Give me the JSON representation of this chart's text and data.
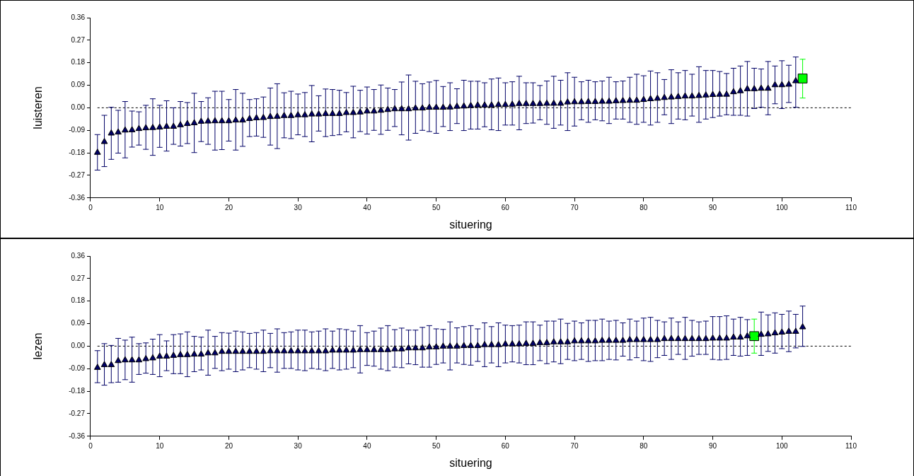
{
  "chart_data": [
    {
      "type": "scatter",
      "xlabel": "situering",
      "ylabel": "luisteren",
      "xlim": [
        0,
        110
      ],
      "xticks": [
        0,
        10,
        20,
        30,
        40,
        50,
        60,
        70,
        80,
        90,
        100,
        110
      ],
      "ylim": [
        -0.36,
        0.36
      ],
      "yticks": [
        {
          "value": -0.36,
          "label": "-0.36"
        },
        {
          "value": -0.27,
          "label": "-0.27"
        },
        {
          "value": -0.18,
          "label": "-0.18"
        },
        {
          "value": -0.09,
          "label": "-0.09"
        },
        {
          "value": 0,
          "label": "0.00"
        },
        {
          "value": 0.09,
          "label": "0.09"
        },
        {
          "value": 0.18,
          "label": "0.18"
        },
        {
          "value": 0.27,
          "label": "0.27"
        },
        {
          "value": 0.36,
          "label": "0.36"
        }
      ],
      "grid": false,
      "ref_lines": [
        {
          "axis": "y",
          "value": 0,
          "color": "#000000",
          "line_style": "dashed"
        }
      ],
      "series": [
        {
          "color": "#000066",
          "marker": "triangle",
          "x": [
            1,
            2,
            3,
            4,
            5,
            6,
            7,
            8,
            9,
            10,
            11,
            12,
            13,
            14,
            15,
            16,
            17,
            18,
            19,
            20,
            21,
            22,
            23,
            24,
            25,
            26,
            27,
            28,
            29,
            30,
            31,
            32,
            33,
            34,
            35,
            36,
            37,
            38,
            39,
            40,
            41,
            42,
            43,
            44,
            45,
            46,
            47,
            48,
            49,
            50,
            51,
            52,
            53,
            54,
            55,
            56,
            57,
            58,
            59,
            60,
            61,
            62,
            63,
            64,
            65,
            66,
            67,
            68,
            69,
            70,
            71,
            72,
            73,
            74,
            75,
            76,
            77,
            78,
            79,
            80,
            81,
            82,
            83,
            84,
            85,
            86,
            87,
            88,
            89,
            90,
            91,
            92,
            93,
            94,
            95,
            96,
            97,
            98,
            99,
            100,
            101,
            102
          ],
          "values": [
            -0.179,
            -0.136,
            -0.102,
            -0.098,
            -0.09,
            -0.089,
            -0.084,
            -0.081,
            -0.08,
            -0.078,
            -0.075,
            -0.075,
            -0.069,
            -0.064,
            -0.061,
            -0.055,
            -0.054,
            -0.053,
            -0.053,
            -0.053,
            -0.05,
            -0.05,
            -0.044,
            -0.041,
            -0.04,
            -0.036,
            -0.035,
            -0.032,
            -0.032,
            -0.029,
            -0.029,
            -0.026,
            -0.026,
            -0.024,
            -0.024,
            -0.024,
            -0.02,
            -0.02,
            -0.018,
            -0.014,
            -0.014,
            -0.011,
            -0.008,
            -0.005,
            -0.005,
            -0.005,
            -0.002,
            -0.002,
            0.001,
            0.001,
            0.001,
            0.002,
            0.005,
            0.006,
            0.008,
            0.01,
            0.01,
            0.01,
            0.012,
            0.012,
            0.013,
            0.016,
            0.016,
            0.016,
            0.016,
            0.017,
            0.017,
            0.017,
            0.022,
            0.023,
            0.023,
            0.024,
            0.024,
            0.025,
            0.025,
            0.027,
            0.028,
            0.029,
            0.029,
            0.032,
            0.035,
            0.037,
            0.04,
            0.042,
            0.044,
            0.046,
            0.046,
            0.048,
            0.05,
            0.052,
            0.053,
            0.053,
            0.063,
            0.067,
            0.075,
            0.075,
            0.077,
            0.077,
            0.091,
            0.091,
            0.093,
            0.107
          ],
          "errors": [
            [
              -0.249,
              -0.107
            ],
            [
              -0.235,
              -0.03
            ],
            [
              -0.206,
              0.002
            ],
            [
              -0.181,
              -0.01
            ],
            [
              -0.2,
              0.025
            ],
            [
              -0.157,
              -0.013
            ],
            [
              -0.149,
              -0.016
            ],
            [
              -0.166,
              0.01
            ],
            [
              -0.19,
              0.036
            ],
            [
              -0.158,
              0.01
            ],
            [
              -0.173,
              0.028
            ],
            [
              -0.146,
              0
            ],
            [
              -0.153,
              0.025
            ],
            [
              -0.143,
              0.021
            ],
            [
              -0.179,
              0.058
            ],
            [
              -0.135,
              0.025
            ],
            [
              -0.146,
              0.04
            ],
            [
              -0.169,
              0.066
            ],
            [
              -0.167,
              0.066
            ],
            [
              -0.133,
              0.033
            ],
            [
              -0.169,
              0.073
            ],
            [
              -0.154,
              0.058
            ],
            [
              -0.115,
              0.033
            ],
            [
              -0.113,
              0.036
            ],
            [
              -0.118,
              0.043
            ],
            [
              -0.149,
              0.079
            ],
            [
              -0.163,
              0.096
            ],
            [
              -0.12,
              0.06
            ],
            [
              -0.123,
              0.066
            ],
            [
              -0.108,
              0.055
            ],
            [
              -0.115,
              0.061
            ],
            [
              -0.136,
              0.089
            ],
            [
              -0.093,
              0.048
            ],
            [
              -0.115,
              0.075
            ],
            [
              -0.111,
              0.073
            ],
            [
              -0.108,
              0.07
            ],
            [
              -0.096,
              0.061
            ],
            [
              -0.12,
              0.086
            ],
            [
              -0.095,
              0.07
            ],
            [
              -0.105,
              0.083
            ],
            [
              -0.09,
              0.073
            ],
            [
              -0.106,
              0.091
            ],
            [
              -0.09,
              0.079
            ],
            [
              -0.075,
              0.073
            ],
            [
              -0.108,
              0.103
            ],
            [
              -0.129,
              0.131
            ],
            [
              -0.102,
              0.106
            ],
            [
              -0.09,
              0.096
            ],
            [
              -0.095,
              0.103
            ],
            [
              -0.102,
              0.109
            ],
            [
              -0.075,
              0.085
            ],
            [
              -0.091,
              0.1
            ],
            [
              -0.063,
              0.076
            ],
            [
              -0.091,
              0.11
            ],
            [
              -0.085,
              0.106
            ],
            [
              -0.085,
              0.106
            ],
            [
              -0.076,
              0.1
            ],
            [
              -0.088,
              0.115
            ],
            [
              -0.091,
              0.119
            ],
            [
              -0.069,
              0.1
            ],
            [
              -0.069,
              0.104
            ],
            [
              -0.088,
              0.126
            ],
            [
              -0.063,
              0.1
            ],
            [
              -0.061,
              0.1
            ],
            [
              -0.048,
              0.089
            ],
            [
              -0.066,
              0.107
            ],
            [
              -0.082,
              0.126
            ],
            [
              -0.069,
              0.11
            ],
            [
              -0.091,
              0.14
            ],
            [
              -0.073,
              0.122
            ],
            [
              -0.048,
              0.104
            ],
            [
              -0.058,
              0.11
            ],
            [
              -0.048,
              0.104
            ],
            [
              -0.052,
              0.107
            ],
            [
              -0.063,
              0.122
            ],
            [
              -0.045,
              0.104
            ],
            [
              -0.045,
              0.107
            ],
            [
              -0.058,
              0.122
            ],
            [
              -0.066,
              0.134
            ],
            [
              -0.058,
              0.128
            ],
            [
              -0.069,
              0.147
            ],
            [
              -0.058,
              0.14
            ],
            [
              -0.028,
              0.113
            ],
            [
              -0.063,
              0.152
            ],
            [
              -0.045,
              0.14
            ],
            [
              -0.048,
              0.149
            ],
            [
              -0.033,
              0.134
            ],
            [
              -0.058,
              0.164
            ],
            [
              -0.045,
              0.149
            ],
            [
              -0.039,
              0.149
            ],
            [
              -0.033,
              0.145
            ],
            [
              -0.028,
              0.137
            ],
            [
              -0.03,
              0.158
            ],
            [
              -0.03,
              0.167
            ],
            [
              -0.033,
              0.185
            ],
            [
              -0.003,
              0.158
            ],
            [
              0.002,
              0.155
            ],
            [
              -0.028,
              0.185
            ],
            [
              0.016,
              0.167
            ],
            [
              -0.003,
              0.188
            ],
            [
              0.021,
              0.17
            ],
            [
              0.002,
              0.203
            ]
          ]
        },
        {
          "color": "#00ff00",
          "marker": "square",
          "x": [
            103
          ],
          "values": [
            0.117
          ],
          "errors": [
            [
              0.039,
              0.194
            ]
          ]
        }
      ]
    },
    {
      "type": "scatter",
      "xlabel": "situering",
      "ylabel": "lezen",
      "xlim": [
        0,
        110
      ],
      "xticks": [
        0,
        10,
        20,
        30,
        40,
        50,
        60,
        70,
        80,
        90,
        100,
        110
      ],
      "ylim": [
        -0.36,
        0.36
      ],
      "yticks": [
        {
          "value": -0.36,
          "label": "-0.36"
        },
        {
          "value": -0.27,
          "label": "-0.27"
        },
        {
          "value": -0.18,
          "label": "-0.18"
        },
        {
          "value": -0.09,
          "label": "-0.09"
        },
        {
          "value": 0,
          "label": "0.00"
        },
        {
          "value": 0.09,
          "label": "0.09"
        },
        {
          "value": 0.18,
          "label": "0.18"
        },
        {
          "value": 0.27,
          "label": "0.27"
        },
        {
          "value": 0.36,
          "label": "0.36"
        }
      ],
      "grid": false,
      "ref_lines": [
        {
          "axis": "y",
          "value": 0,
          "color": "#000000",
          "line_style": "dashed"
        }
      ],
      "series": [
        {
          "color": "#000066",
          "marker": "triangle",
          "x": [
            1,
            2,
            3,
            4,
            5,
            6,
            7,
            8,
            9,
            10,
            11,
            12,
            13,
            14,
            15,
            16,
            17,
            18,
            19,
            20,
            21,
            22,
            23,
            24,
            25,
            26,
            27,
            28,
            29,
            30,
            31,
            32,
            33,
            34,
            35,
            36,
            37,
            38,
            39,
            40,
            41,
            42,
            43,
            44,
            45,
            46,
            47,
            48,
            49,
            50,
            51,
            52,
            53,
            54,
            55,
            56,
            57,
            58,
            59,
            60,
            61,
            62,
            63,
            64,
            65,
            66,
            67,
            68,
            69,
            70,
            71,
            72,
            73,
            74,
            75,
            76,
            77,
            78,
            79,
            80,
            81,
            82,
            83,
            84,
            85,
            86,
            87,
            88,
            89,
            90,
            91,
            92,
            93,
            94,
            95,
            97,
            98,
            99,
            100,
            101,
            102,
            103
          ],
          "values": [
            -0.086,
            -0.075,
            -0.075,
            -0.059,
            -0.056,
            -0.056,
            -0.056,
            -0.051,
            -0.048,
            -0.041,
            -0.041,
            -0.038,
            -0.035,
            -0.035,
            -0.033,
            -0.033,
            -0.028,
            -0.028,
            -0.022,
            -0.022,
            -0.022,
            -0.022,
            -0.022,
            -0.022,
            -0.022,
            -0.02,
            -0.02,
            -0.02,
            -0.02,
            -0.02,
            -0.02,
            -0.02,
            -0.02,
            -0.02,
            -0.017,
            -0.017,
            -0.017,
            -0.017,
            -0.015,
            -0.015,
            -0.015,
            -0.015,
            -0.015,
            -0.012,
            -0.012,
            -0.008,
            -0.008,
            -0.008,
            -0.004,
            -0.004,
            -0.001,
            -0.001,
            -0.001,
            0.001,
            0.001,
            0.001,
            0.005,
            0.005,
            0.005,
            0.008,
            0.008,
            0.008,
            0.01,
            0.01,
            0.013,
            0.013,
            0.016,
            0.016,
            0.016,
            0.02,
            0.02,
            0.02,
            0.02,
            0.022,
            0.022,
            0.022,
            0.022,
            0.025,
            0.025,
            0.025,
            0.025,
            0.025,
            0.029,
            0.029,
            0.029,
            0.029,
            0.029,
            0.029,
            0.029,
            0.031,
            0.031,
            0.031,
            0.035,
            0.035,
            0.04,
            0.046,
            0.048,
            0.052,
            0.055,
            0.058,
            0.058,
            0.076
          ],
          "errors": [
            [
              -0.146,
              -0.018
            ],
            [
              -0.156,
              0.01
            ],
            [
              -0.146,
              0.003
            ],
            [
              -0.144,
              0.031
            ],
            [
              -0.134,
              0.024
            ],
            [
              -0.144,
              0.036
            ],
            [
              -0.113,
              0.01
            ],
            [
              -0.108,
              0.013
            ],
            [
              -0.113,
              0.028
            ],
            [
              -0.122,
              0.046
            ],
            [
              -0.098,
              0.021
            ],
            [
              -0.11,
              0.046
            ],
            [
              -0.11,
              0.049
            ],
            [
              -0.122,
              0.057
            ],
            [
              -0.102,
              0.039
            ],
            [
              -0.095,
              0.036
            ],
            [
              -0.116,
              0.064
            ],
            [
              -0.089,
              0.039
            ],
            [
              -0.098,
              0.054
            ],
            [
              -0.092,
              0.052
            ],
            [
              -0.102,
              0.06
            ],
            [
              -0.095,
              0.057
            ],
            [
              -0.086,
              0.051
            ],
            [
              -0.092,
              0.054
            ],
            [
              -0.102,
              0.064
            ],
            [
              -0.086,
              0.051
            ],
            [
              -0.104,
              0.069
            ],
            [
              -0.089,
              0.054
            ],
            [
              -0.089,
              0.057
            ],
            [
              -0.095,
              0.064
            ],
            [
              -0.098,
              0.064
            ],
            [
              -0.089,
              0.057
            ],
            [
              -0.092,
              0.06
            ],
            [
              -0.098,
              0.069
            ],
            [
              -0.089,
              0.06
            ],
            [
              -0.095,
              0.069
            ],
            [
              -0.092,
              0.066
            ],
            [
              -0.086,
              0.06
            ],
            [
              -0.107,
              0.082
            ],
            [
              -0.077,
              0.054
            ],
            [
              -0.08,
              0.06
            ],
            [
              -0.092,
              0.072
            ],
            [
              -0.098,
              0.082
            ],
            [
              -0.084,
              0.066
            ],
            [
              -0.086,
              0.072
            ],
            [
              -0.071,
              0.064
            ],
            [
              -0.074,
              0.064
            ],
            [
              -0.084,
              0.075
            ],
            [
              -0.084,
              0.082
            ],
            [
              -0.073,
              0.069
            ],
            [
              -0.067,
              0.067
            ],
            [
              -0.095,
              0.097
            ],
            [
              -0.067,
              0.073
            ],
            [
              -0.073,
              0.078
            ],
            [
              -0.076,
              0.082
            ],
            [
              -0.061,
              0.069
            ],
            [
              -0.082,
              0.093
            ],
            [
              -0.067,
              0.078
            ],
            [
              -0.082,
              0.093
            ],
            [
              -0.067,
              0.084
            ],
            [
              -0.063,
              0.082
            ],
            [
              -0.067,
              0.084
            ],
            [
              -0.074,
              0.097
            ],
            [
              -0.074,
              0.097
            ],
            [
              -0.058,
              0.084
            ],
            [
              -0.07,
              0.1
            ],
            [
              -0.063,
              0.1
            ],
            [
              -0.07,
              0.108
            ],
            [
              -0.053,
              0.091
            ],
            [
              -0.058,
              0.1
            ],
            [
              -0.053,
              0.093
            ],
            [
              -0.061,
              0.103
            ],
            [
              -0.058,
              0.103
            ],
            [
              -0.058,
              0.108
            ],
            [
              -0.053,
              0.1
            ],
            [
              -0.055,
              0.103
            ],
            [
              -0.04,
              0.093
            ],
            [
              -0.055,
              0.108
            ],
            [
              -0.046,
              0.1
            ],
            [
              -0.058,
              0.112
            ],
            [
              -0.061,
              0.115
            ],
            [
              -0.046,
              0.103
            ],
            [
              -0.037,
              0.097
            ],
            [
              -0.053,
              0.112
            ],
            [
              -0.033,
              0.097
            ],
            [
              -0.053,
              0.115
            ],
            [
              -0.04,
              0.103
            ],
            [
              -0.033,
              0.097
            ],
            [
              -0.033,
              0.1
            ],
            [
              -0.053,
              0.118
            ],
            [
              -0.055,
              0.118
            ],
            [
              -0.053,
              0.121
            ],
            [
              -0.037,
              0.108
            ],
            [
              -0.04,
              0.115
            ],
            [
              -0.037,
              0.106
            ],
            [
              -0.037,
              0.136
            ],
            [
              -0.021,
              0.125
            ],
            [
              -0.028,
              0.133
            ],
            [
              -0.01,
              0.127
            ],
            [
              -0.022,
              0.14
            ],
            [
              -0.007,
              0.127
            ],
            [
              -0.001,
              0.16
            ]
          ]
        },
        {
          "color": "#00ff00",
          "marker": "square",
          "x": [
            96
          ],
          "values": [
            0.04
          ],
          "errors": [
            [
              -0.028,
              0.108
            ]
          ]
        }
      ]
    }
  ]
}
